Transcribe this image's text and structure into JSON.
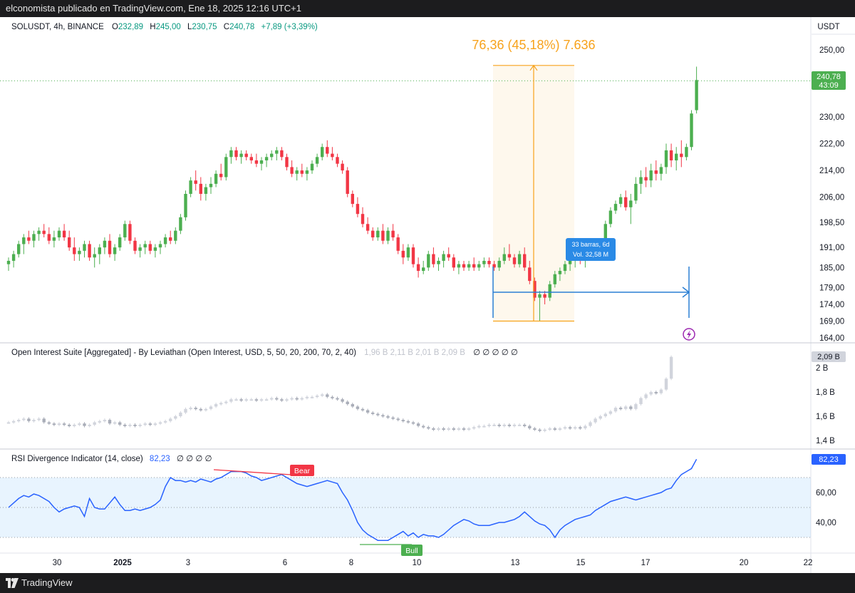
{
  "topbar": {
    "text": "elconomista publicado en TradingView.com, Ene 18, 2025 12:16 UTC+1"
  },
  "footer": {
    "brand": "TradingView"
  },
  "legend": {
    "symbol": "SOLUSDT, 4h, BINANCE",
    "o_label": "O",
    "o": "232,89",
    "h_label": "H",
    "h": "245,00",
    "l_label": "L",
    "l": "230,75",
    "c_label": "C",
    "c": "240,78",
    "change": "+7,89 (+3,39%)"
  },
  "currency": "USDT",
  "price_tag": {
    "price": "240,78",
    "countdown": "43:09"
  },
  "measure": {
    "label": "76,36 (45,18%) 7.636",
    "tooltip_line1": "33 barras, 6d",
    "tooltip_line2": "Vol. 32,58 M"
  },
  "oi": {
    "label": "Open Interest Suite [Aggregated] - By Leviathan (Open Interest, USD, 5, 50, 20, 200, 70, 2, 40)",
    "values": "1,96 B  2,11 B  2,01 B  2,09 B",
    "nulls": "∅ ∅ ∅ ∅ ∅",
    "tag": "2,09 B"
  },
  "rsi": {
    "label": "RSI Divergence Indicator (14, close)",
    "value": "82,23",
    "nulls": "∅ ∅ ∅ ∅",
    "tag": "82,23",
    "bear_label": "Bear",
    "bull_label": "Bull"
  },
  "colors": {
    "up": "#4caf50",
    "down": "#f23645",
    "measure": "#f7a21b",
    "date_range": "#2a7fd4",
    "rsi_line": "#2962ff",
    "background": "#ffffff"
  },
  "icons": {
    "alert": "lightning-icon",
    "logo": "tradingview-logo-icon"
  },
  "chart_data": [
    {
      "type": "candlestick",
      "name": "SOLUSDT, 4h, BINANCE",
      "interval": "4h",
      "x_ticks": [
        "30",
        "2025",
        "3",
        "6",
        "8",
        "10",
        "13",
        "15",
        "17",
        "20",
        "22"
      ],
      "y_ticks": [
        "250,00",
        "230,00",
        "222,00",
        "214,00",
        "206,00",
        "198,50",
        "191,00",
        "185,00",
        "179,00",
        "174,00",
        "169,00",
        "164,00"
      ],
      "ylim": [
        162,
        253
      ],
      "last_price": 240.78,
      "ohlc_last": {
        "open": 232.89,
        "high": 245.0,
        "low": 230.75,
        "close": 240.78
      },
      "measure_range": {
        "from": 169.0,
        "to": 245.36,
        "change": 76.36,
        "percent": 45.18,
        "bars": 33,
        "days": 6
      },
      "ohlc": [
        [
          186,
          188,
          184,
          187
        ],
        [
          187,
          190,
          185,
          189
        ],
        [
          189,
          193,
          188,
          192
        ],
        [
          192,
          195,
          189,
          194
        ],
        [
          194,
          196,
          192,
          193
        ],
        [
          193,
          196,
          191,
          195
        ],
        [
          195,
          197,
          193,
          196
        ],
        [
          196,
          198,
          194,
          195
        ],
        [
          195,
          197,
          192,
          193
        ],
        [
          193,
          196,
          191,
          194
        ],
        [
          194,
          197,
          193,
          196
        ],
        [
          196,
          198,
          193,
          194
        ],
        [
          194,
          196,
          190,
          191
        ],
        [
          191,
          194,
          187,
          189
        ],
        [
          189,
          191,
          187,
          190
        ],
        [
          190,
          193,
          188,
          192
        ],
        [
          192,
          193,
          187,
          188
        ],
        [
          188,
          191,
          185,
          189
        ],
        [
          189,
          192,
          186,
          191
        ],
        [
          191,
          194,
          189,
          193
        ],
        [
          193,
          195,
          188,
          189
        ],
        [
          189,
          192,
          187,
          191
        ],
        [
          191,
          195,
          190,
          194
        ],
        [
          194,
          199,
          193,
          198
        ],
        [
          198,
          199,
          192,
          193
        ],
        [
          193,
          194,
          189,
          190
        ],
        [
          190,
          192,
          188,
          191
        ],
        [
          191,
          193,
          189,
          192
        ],
        [
          192,
          193,
          189,
          190
        ],
        [
          190,
          192,
          188,
          191
        ],
        [
          191,
          193,
          189,
          192
        ],
        [
          192,
          195,
          191,
          194
        ],
        [
          194,
          196,
          192,
          193
        ],
        [
          193,
          197,
          192,
          196
        ],
        [
          196,
          201,
          195,
          200
        ],
        [
          200,
          208,
          199,
          207
        ],
        [
          207,
          212,
          206,
          211
        ],
        [
          211,
          214,
          208,
          210
        ],
        [
          210,
          212,
          205,
          207
        ],
        [
          207,
          210,
          205,
          209
        ],
        [
          209,
          212,
          207,
          210
        ],
        [
          210,
          214,
          209,
          213
        ],
        [
          213,
          216,
          211,
          212
        ],
        [
          212,
          219,
          211,
          218
        ],
        [
          218,
          221,
          216,
          220
        ],
        [
          220,
          221,
          217,
          218
        ],
        [
          218,
          220,
          216,
          219
        ],
        [
          219,
          220,
          217,
          218
        ],
        [
          218,
          219,
          216,
          217
        ],
        [
          217,
          219,
          215,
          216
        ],
        [
          216,
          218,
          214,
          217
        ],
        [
          217,
          219,
          215,
          218
        ],
        [
          218,
          220,
          217,
          219
        ],
        [
          219,
          221,
          217,
          220
        ],
        [
          220,
          221,
          217,
          218
        ],
        [
          218,
          219,
          214,
          215
        ],
        [
          215,
          217,
          212,
          213
        ],
        [
          213,
          215,
          211,
          214
        ],
        [
          214,
          216,
          212,
          213
        ],
        [
          213,
          215,
          211,
          214
        ],
        [
          214,
          217,
          213,
          216
        ],
        [
          216,
          219,
          215,
          218
        ],
        [
          218,
          222,
          217,
          221
        ],
        [
          221,
          223,
          218,
          219
        ],
        [
          219,
          221,
          217,
          218
        ],
        [
          218,
          219,
          215,
          216
        ],
        [
          216,
          217,
          213,
          214
        ],
        [
          214,
          215,
          206,
          207
        ],
        [
          207,
          208,
          203,
          204
        ],
        [
          204,
          206,
          200,
          201
        ],
        [
          201,
          203,
          197,
          198
        ],
        [
          198,
          200,
          195,
          196
        ],
        [
          196,
          197,
          193,
          194
        ],
        [
          194,
          197,
          193,
          196
        ],
        [
          196,
          198,
          192,
          193
        ],
        [
          193,
          197,
          192,
          196
        ],
        [
          196,
          198,
          193,
          194
        ],
        [
          194,
          195,
          189,
          190
        ],
        [
          190,
          192,
          186,
          188
        ],
        [
          188,
          192,
          187,
          191
        ],
        [
          191,
          192,
          185,
          186
        ],
        [
          186,
          188,
          182,
          184
        ],
        [
          184,
          187,
          183,
          185
        ],
        [
          185,
          190,
          184,
          189
        ],
        [
          189,
          191,
          185,
          186
        ],
        [
          186,
          188,
          184,
          187
        ],
        [
          187,
          190,
          185,
          189
        ],
        [
          189,
          191,
          187,
          188
        ],
        [
          188,
          189,
          184,
          185
        ],
        [
          185,
          187,
          183,
          186
        ],
        [
          186,
          187,
          184,
          185
        ],
        [
          185,
          187,
          184,
          186
        ],
        [
          186,
          188,
          184,
          185
        ],
        [
          185,
          187,
          184,
          186
        ],
        [
          186,
          188,
          185,
          187
        ],
        [
          187,
          188,
          185,
          186
        ],
        [
          186,
          187,
          184,
          185
        ],
        [
          185,
          188,
          184,
          187
        ],
        [
          187,
          191,
          186,
          189
        ],
        [
          189,
          192,
          187,
          188
        ],
        [
          188,
          189,
          185,
          186
        ],
        [
          186,
          190,
          185,
          189
        ],
        [
          189,
          191,
          184,
          185
        ],
        [
          185,
          187,
          180,
          181
        ],
        [
          181,
          182,
          175,
          176
        ],
        [
          176,
          178,
          169,
          177
        ],
        [
          177,
          178,
          174,
          176
        ],
        [
          176,
          181,
          175,
          180
        ],
        [
          180,
          184,
          179,
          183
        ],
        [
          183,
          185,
          181,
          184
        ],
        [
          184,
          187,
          183,
          186
        ],
        [
          186,
          188,
          184,
          187
        ],
        [
          187,
          189,
          185,
          188
        ],
        [
          188,
          190,
          186,
          187
        ],
        [
          187,
          189,
          185,
          188
        ],
        [
          188,
          190,
          187,
          189
        ],
        [
          189,
          191,
          187,
          190
        ],
        [
          190,
          193,
          189,
          192
        ],
        [
          192,
          199,
          191,
          198
        ],
        [
          198,
          203,
          197,
          202
        ],
        [
          202,
          205,
          201,
          204
        ],
        [
          204,
          207,
          203,
          206
        ],
        [
          206,
          208,
          202,
          203
        ],
        [
          203,
          207,
          198,
          205
        ],
        [
          205,
          212,
          204,
          210
        ],
        [
          210,
          214,
          207,
          212
        ],
        [
          212,
          215,
          209,
          211
        ],
        [
          211,
          216,
          209,
          214
        ],
        [
          214,
          217,
          211,
          213
        ],
        [
          213,
          216,
          211,
          215
        ],
        [
          215,
          222,
          213,
          220
        ],
        [
          220,
          222,
          215,
          217
        ],
        [
          217,
          221,
          214,
          219
        ],
        [
          219,
          223,
          215,
          218
        ],
        [
          218,
          222,
          217,
          221
        ],
        [
          221,
          232,
          220,
          231
        ],
        [
          232,
          245,
          231,
          241
        ]
      ]
    },
    {
      "type": "candlestick",
      "name": "Open Interest Suite [Aggregated] - By Leviathan",
      "y_ticks": [
        "2 B",
        "1,8 B",
        "1,6 B",
        "1,4 B"
      ],
      "ylim": [
        1.37,
        2.13
      ],
      "last_value": 2.09,
      "values": [
        1.55,
        1.56,
        1.57,
        1.58,
        1.56,
        1.57,
        1.58,
        1.55,
        1.54,
        1.53,
        1.54,
        1.53,
        1.52,
        1.53,
        1.54,
        1.52,
        1.53,
        1.55,
        1.56,
        1.57,
        1.54,
        1.55,
        1.53,
        1.52,
        1.53,
        1.52,
        1.53,
        1.54,
        1.53,
        1.54,
        1.55,
        1.56,
        1.58,
        1.6,
        1.63,
        1.66,
        1.67,
        1.66,
        1.65,
        1.66,
        1.68,
        1.7,
        1.71,
        1.72,
        1.74,
        1.74,
        1.73,
        1.74,
        1.74,
        1.73,
        1.74,
        1.74,
        1.75,
        1.74,
        1.73,
        1.74,
        1.75,
        1.74,
        1.75,
        1.76,
        1.76,
        1.77,
        1.78,
        1.76,
        1.75,
        1.74,
        1.72,
        1.7,
        1.68,
        1.66,
        1.65,
        1.63,
        1.62,
        1.61,
        1.6,
        1.59,
        1.58,
        1.57,
        1.56,
        1.55,
        1.54,
        1.52,
        1.51,
        1.5,
        1.49,
        1.5,
        1.49,
        1.5,
        1.49,
        1.5,
        1.49,
        1.5,
        1.51,
        1.52,
        1.52,
        1.53,
        1.53,
        1.52,
        1.53,
        1.52,
        1.53,
        1.53,
        1.52,
        1.5,
        1.49,
        1.48,
        1.49,
        1.5,
        1.49,
        1.5,
        1.51,
        1.5,
        1.51,
        1.5,
        1.52,
        1.55,
        1.58,
        1.6,
        1.62,
        1.64,
        1.67,
        1.66,
        1.68,
        1.66,
        1.7,
        1.75,
        1.78,
        1.8,
        1.79,
        1.82,
        1.91,
        2.09
      ]
    },
    {
      "type": "line",
      "name": "RSI Divergence Indicator (14, close)",
      "y_ticks": [
        "60,00",
        "40,00"
      ],
      "ylim": [
        20,
        88
      ],
      "band": [
        30,
        70
      ],
      "last_value": 82.23,
      "values": [
        50,
        53,
        56,
        58,
        57,
        59,
        58,
        56,
        54,
        50,
        47,
        49,
        50,
        51,
        50,
        44,
        56,
        50,
        49,
        49,
        53,
        57,
        52,
        48,
        48,
        49,
        48,
        49,
        50,
        52,
        55,
        64,
        70,
        68,
        68,
        67,
        68,
        67,
        69,
        68,
        67,
        69,
        70,
        72,
        74,
        74,
        74,
        73,
        71,
        70,
        68,
        69,
        70,
        71,
        72,
        70,
        68,
        66,
        65,
        64,
        65,
        66,
        67,
        68,
        67,
        66,
        60,
        55,
        48,
        40,
        35,
        32,
        30,
        28,
        28,
        28,
        30,
        32,
        34,
        31,
        33,
        30,
        32,
        31,
        31,
        30,
        32,
        35,
        38,
        40,
        42,
        41,
        39,
        38,
        38,
        38,
        39,
        40,
        40,
        41,
        42,
        44,
        47,
        44,
        41,
        39,
        38,
        35,
        30,
        35,
        38,
        40,
        42,
        43,
        44,
        45,
        48,
        50,
        52,
        54,
        55,
        56,
        57,
        56,
        55,
        56,
        57,
        58,
        59,
        60,
        62,
        63,
        68,
        72,
        74,
        76,
        82.23
      ],
      "divergences": [
        {
          "label": "Bear"
        },
        {
          "label": "Bull"
        }
      ]
    }
  ]
}
